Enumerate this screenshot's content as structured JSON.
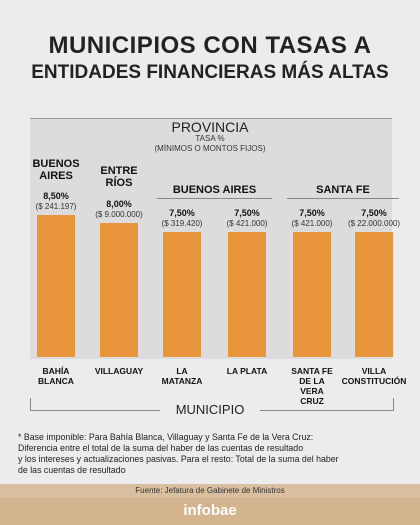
{
  "chart_data": {
    "type": "bar",
    "title": "MUNICIPIOS CON TASAS A",
    "subtitle": "ENTIDADES FINANCIERAS MÁS ALTAS",
    "group_axis_label": "PROVINCIA",
    "value_axis_label": "TASA %\n(MÍNIMOS O MONTOS FIJOS)",
    "x_axis_label": "MUNICIPIO",
    "color": "#e8953c",
    "groups": [
      {
        "name": "BUENOS\nAIRES",
        "bars": [
          {
            "category": "BAHÍA\nBLANCA",
            "value": 8.5,
            "value_label": "8,50%",
            "amount": "($ 241.197)"
          }
        ]
      },
      {
        "name": "ENTRE\nRÍOS",
        "bars": [
          {
            "category": "VILLAGUAY",
            "value": 8.0,
            "value_label": "8,00%",
            "amount": "($ 9.000.000)"
          }
        ]
      },
      {
        "name": "BUENOS AIRES",
        "bars": [
          {
            "category": "LA\nMATANZA",
            "value": 7.5,
            "value_label": "7,50%",
            "amount": "($ 319.420)"
          },
          {
            "category": "LA PLATA",
            "value": 7.5,
            "value_label": "7,50%",
            "amount": "($ 421.000)"
          }
        ]
      },
      {
        "name": "SANTA FE",
        "bars": [
          {
            "category": "SANTA FE\nDE LA\nVERA\nCRUZ",
            "value": 7.5,
            "value_label": "7,50%",
            "amount": "($ 421.000)"
          },
          {
            "category": "VILLA\nCONSTITUCIÓN",
            "value": 7.5,
            "value_label": "7,50%",
            "amount": "($ 22.000.000)"
          }
        ]
      }
    ]
  },
  "footnote": "*  Base imponible: Para Bahía Blanca, Villaguay y Santa Fe de la Vera Cruz:\n   Diferencia entre el total de la suma del haber de las cuentas de resultado\n   y los intereses y actualizaciones pasivas. Para el resto: Total de la suma del haber\n   de las cuentas de resultado",
  "source": "Fuente: Jefatura de Gabinete de Ministros",
  "logo": "infobae"
}
